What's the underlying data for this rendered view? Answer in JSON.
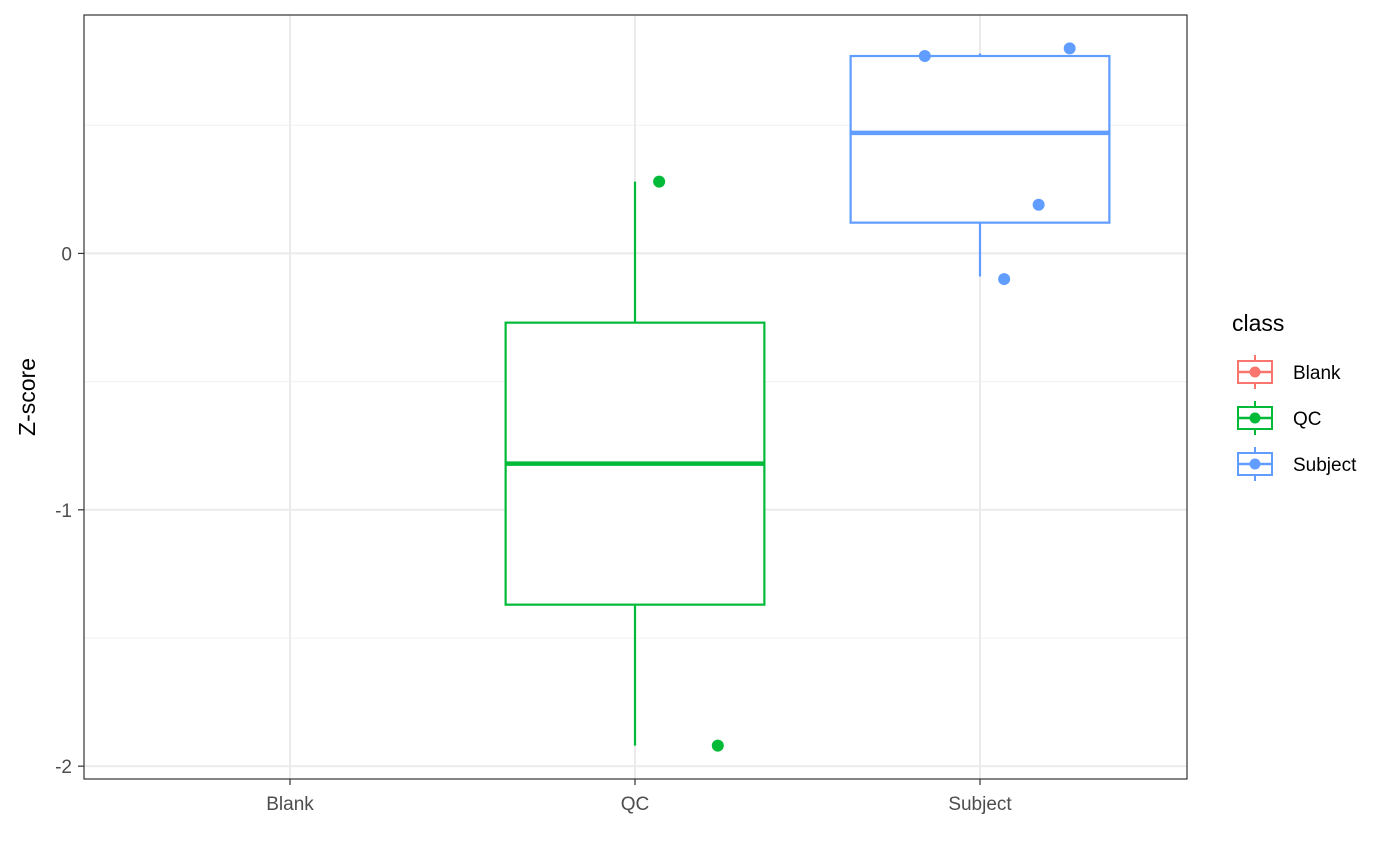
{
  "chart_data": {
    "type": "boxplot",
    "ylabel": "Z-score",
    "xlabel": "",
    "categories": [
      "Blank",
      "QC",
      "Subject"
    ],
    "ylim": [
      -2.05,
      0.93
    ],
    "yticks": [
      -2,
      -1,
      0
    ],
    "ytick_labels": [
      "-2",
      "-1",
      "0"
    ],
    "grid": true,
    "legend": {
      "title": "class",
      "position": "right",
      "entries": [
        {
          "label": "Blank",
          "color": "#F8766D"
        },
        {
          "label": "QC",
          "color": "#00BA38"
        },
        {
          "label": "Subject",
          "color": "#619CFF"
        }
      ]
    },
    "boxes": [
      {
        "category": "QC",
        "color": "#00BA38",
        "whisker_low": -1.92,
        "q1": -1.37,
        "median": -0.82,
        "q3": -0.27,
        "whisker_high": 0.28
      },
      {
        "category": "Subject",
        "color": "#619CFF",
        "whisker_low": -0.09,
        "q1": 0.12,
        "median": 0.47,
        "q3": 0.77,
        "whisker_high": 0.78
      }
    ],
    "points": [
      {
        "category": "QC",
        "jitter": 0.07,
        "y": 0.28,
        "color": "#00BA38"
      },
      {
        "category": "QC",
        "jitter": 0.24,
        "y": -1.92,
        "color": "#00BA38"
      },
      {
        "category": "Subject",
        "jitter": -0.16,
        "y": 0.77,
        "color": "#619CFF"
      },
      {
        "category": "Subject",
        "jitter": 0.26,
        "y": 0.8,
        "color": "#619CFF"
      },
      {
        "category": "Subject",
        "jitter": 0.17,
        "y": 0.19,
        "color": "#619CFF"
      },
      {
        "category": "Subject",
        "jitter": 0.07,
        "y": -0.1,
        "color": "#619CFF"
      }
    ]
  }
}
